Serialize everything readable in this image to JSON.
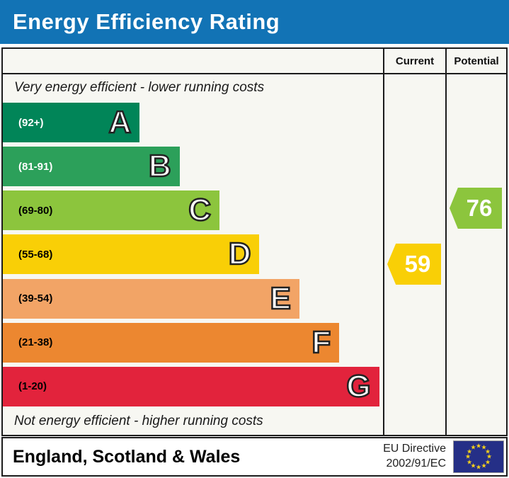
{
  "title": "Energy Efficiency Rating",
  "colors": {
    "title_bar_blue": "#1273b5",
    "table_background": "#f7f7f2",
    "border": "#1c1c1c"
  },
  "columns": {
    "current": "Current",
    "potential": "Potential"
  },
  "captions": {
    "top": "Very energy efficient - lower running costs",
    "bottom": "Not energy efficient - higher running costs"
  },
  "bands": [
    {
      "letter": "A",
      "range": "(92+)",
      "color": "#018558",
      "label_color": "#ffffff",
      "width_pct": "36%"
    },
    {
      "letter": "B",
      "range": "(81-91)",
      "color": "#2ca05a",
      "label_color": "#ffffff",
      "width_pct": "46.5%"
    },
    {
      "letter": "C",
      "range": "(69-80)",
      "color": "#8cc53d",
      "label_color": "#000000",
      "width_pct": "57%"
    },
    {
      "letter": "D",
      "range": "(55-68)",
      "color": "#f9cf06",
      "label_color": "#000000",
      "width_pct": "67.5%"
    },
    {
      "letter": "E",
      "range": "(39-54)",
      "color": "#f2a466",
      "label_color": "#000000",
      "width_pct": "78%"
    },
    {
      "letter": "F",
      "range": "(21-38)",
      "color": "#ec8730",
      "label_color": "#000000",
      "width_pct": "88.5%"
    },
    {
      "letter": "G",
      "range": "(1-20)",
      "color": "#e2233c",
      "label_color": "#000000",
      "width_pct": "99%"
    }
  ],
  "ratings": {
    "current": {
      "value": "59",
      "band": "D",
      "color": "#f9cf06"
    },
    "potential": {
      "value": "76",
      "band": "C",
      "color": "#8cc53d"
    }
  },
  "footer": {
    "region": "England, Scotland & Wales",
    "directive_line1": "EU Directive",
    "directive_line2": "2002/91/EC",
    "flag": {
      "blue": "#252f87",
      "star_color": "#fad21a",
      "star_count": 12
    }
  },
  "chart_data": {
    "type": "bar",
    "orientation": "horizontal",
    "title": "Energy Efficiency Rating",
    "categories": [
      "A",
      "B",
      "C",
      "D",
      "E",
      "F",
      "G"
    ],
    "band_ranges": [
      "92+",
      "81-91",
      "69-80",
      "55-68",
      "39-54",
      "21-38",
      "1-20"
    ],
    "bar_lengths_relative": [
      0.36,
      0.465,
      0.57,
      0.675,
      0.78,
      0.885,
      0.99
    ],
    "band_colors": [
      "#018558",
      "#2ca05a",
      "#8cc53d",
      "#f9cf06",
      "#f2a466",
      "#ec8730",
      "#e2233c"
    ],
    "markers": [
      {
        "name": "Current",
        "value": 59,
        "band": "D"
      },
      {
        "name": "Potential",
        "value": 76,
        "band": "C"
      }
    ],
    "scale": [
      1,
      100
    ],
    "annotations": [
      "Very energy efficient - lower running costs",
      "Not energy efficient - higher running costs"
    ],
    "footer_note": "England, Scotland & Wales — EU Directive 2002/91/EC"
  }
}
